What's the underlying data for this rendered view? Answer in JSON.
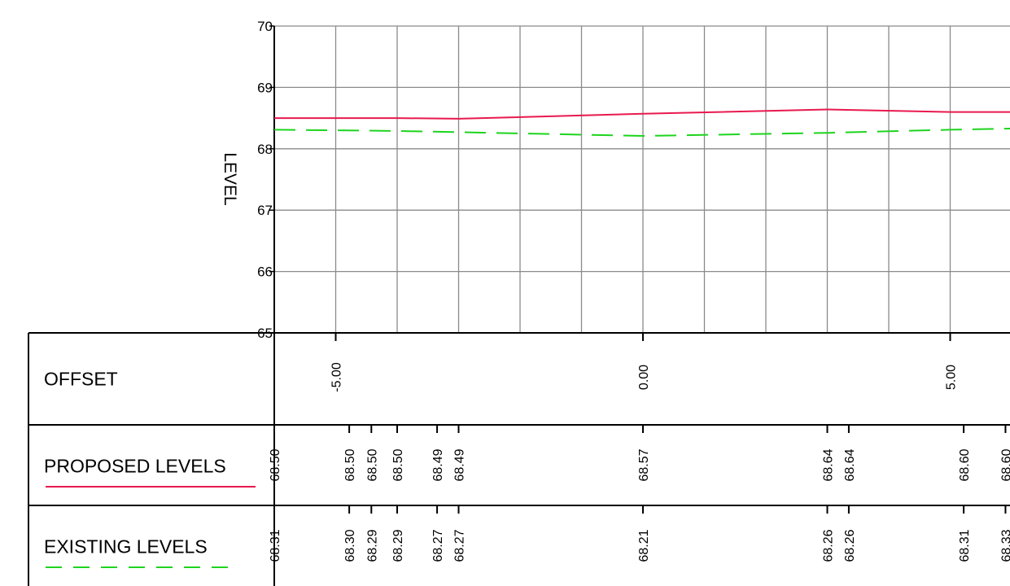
{
  "chart_data": {
    "type": "line",
    "ylabel": "LEVEL",
    "ylim": [
      65,
      70
    ],
    "yticks": [
      "70",
      "69",
      "68",
      "67",
      "66",
      "65"
    ],
    "x_range": [
      -6,
      6
    ],
    "x_grid_step": 1,
    "grid": true,
    "series": [
      {
        "name": "PROPOSED LEVELS",
        "color": "#e8194f",
        "dash": "solid",
        "points": [
          {
            "x": -6.0,
            "y": 68.5
          },
          {
            "x": -4.0,
            "y": 68.5
          },
          {
            "x": -3.0,
            "y": 68.49
          },
          {
            "x": 0.0,
            "y": 68.57
          },
          {
            "x": 3.0,
            "y": 68.64
          },
          {
            "x": 5.0,
            "y": 68.6
          },
          {
            "x": 6.0,
            "y": 68.6
          }
        ]
      },
      {
        "name": "EXISTING LEVELS",
        "color": "#1ed41e",
        "dash": "dashed",
        "points": [
          {
            "x": -6.0,
            "y": 68.31
          },
          {
            "x": -4.0,
            "y": 68.29
          },
          {
            "x": -3.0,
            "y": 68.27
          },
          {
            "x": 0.0,
            "y": 68.21
          },
          {
            "x": 3.0,
            "y": 68.26
          },
          {
            "x": 5.0,
            "y": 68.31
          },
          {
            "x": 6.0,
            "y": 68.33
          }
        ]
      }
    ],
    "table": {
      "rows": [
        {
          "key": "offset",
          "title": "OFFSET",
          "entries": [
            {
              "x": -5.0,
              "label": "-5.00"
            },
            {
              "x": 0.0,
              "label": "0.00"
            },
            {
              "x": 5.0,
              "label": "5.00"
            }
          ]
        },
        {
          "key": "proposed",
          "title": "PROPOSED LEVELS",
          "legend_color": "#e8194f",
          "legend_dash": "solid",
          "entries": [
            {
              "x": -6.0,
              "label": "68.50"
            },
            {
              "x": -4.78,
              "label": "68.50"
            },
            {
              "x": -4.42,
              "label": "68.50"
            },
            {
              "x": -4.0,
              "label": "68.50"
            },
            {
              "x": -3.35,
              "label": "68.49"
            },
            {
              "x": -3.0,
              "label": "68.49"
            },
            {
              "x": 0.0,
              "label": "68.57"
            },
            {
              "x": 3.0,
              "label": "68.64"
            },
            {
              "x": 3.35,
              "label": "68.64"
            },
            {
              "x": 5.22,
              "label": "68.60"
            },
            {
              "x": 5.9,
              "label": "68.60"
            }
          ]
        },
        {
          "key": "existing",
          "title": "EXISTING LEVELS",
          "legend_color": "#1ed41e",
          "legend_dash": "dashed",
          "entries": [
            {
              "x": -6.0,
              "label": "68.31"
            },
            {
              "x": -4.78,
              "label": "68.30"
            },
            {
              "x": -4.42,
              "label": "68.29"
            },
            {
              "x": -4.0,
              "label": "68.29"
            },
            {
              "x": -3.35,
              "label": "68.27"
            },
            {
              "x": -3.0,
              "label": "68.27"
            },
            {
              "x": 0.0,
              "label": "68.21"
            },
            {
              "x": 3.0,
              "label": "68.26"
            },
            {
              "x": 3.35,
              "label": "68.26"
            },
            {
              "x": 5.22,
              "label": "68.31"
            },
            {
              "x": 5.9,
              "label": "68.33"
            }
          ]
        }
      ]
    }
  }
}
